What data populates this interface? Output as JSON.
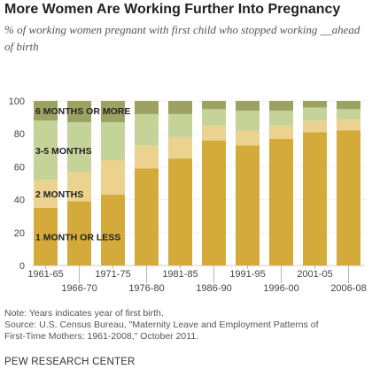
{
  "title": "More Women Are Working Further Into Pregnancy",
  "subtitle": "% of working women pregnant with first child who stopped working __ahead of birth",
  "note": "Note: Years indicates year of first birth.",
  "source_line1": "Source: U.S. Census Bureau, \"Maternity Leave and Employment Patterns of",
  "source_line2": "First-Time Mothers: 1961-2008,\" October 2011.",
  "footer": "PEW RESEARCH CENTER",
  "colors": {
    "one_month": "#d4aa3a",
    "two_months": "#ebd28f",
    "three_five": "#c5d399",
    "six_plus": "#9da263",
    "gridline": "#cccccc"
  },
  "chart_data": {
    "type": "bar",
    "stacked": true,
    "categories": [
      "1961-65",
      "1966-70",
      "1971-75",
      "1976-80",
      "1981-85",
      "1986-90",
      "1991-95",
      "1996-00",
      "2001-05",
      "2006-08"
    ],
    "series": [
      {
        "name": "1 MONTH OR LESS",
        "values": [
          35,
          39,
          43,
          59,
          65,
          76,
          73,
          77,
          81,
          82
        ]
      },
      {
        "name": "2 MONTHS",
        "values": [
          17,
          18,
          21,
          14,
          13,
          9,
          9,
          8,
          7,
          7
        ]
      },
      {
        "name": "3-5 MONTHS",
        "values": [
          36,
          30,
          23,
          19,
          14,
          10,
          12,
          9,
          8,
          6
        ]
      },
      {
        "name": "6 MONTHS OR MORE",
        "values": [
          12,
          13,
          13,
          8,
          8,
          5,
          6,
          6,
          4,
          5
        ]
      }
    ],
    "ylim": [
      0,
      100
    ],
    "yticks": [
      0,
      20,
      40,
      60,
      80,
      100
    ],
    "xlabel": "",
    "ylabel": "",
    "legend": "inline-labels-on-first-bar"
  }
}
